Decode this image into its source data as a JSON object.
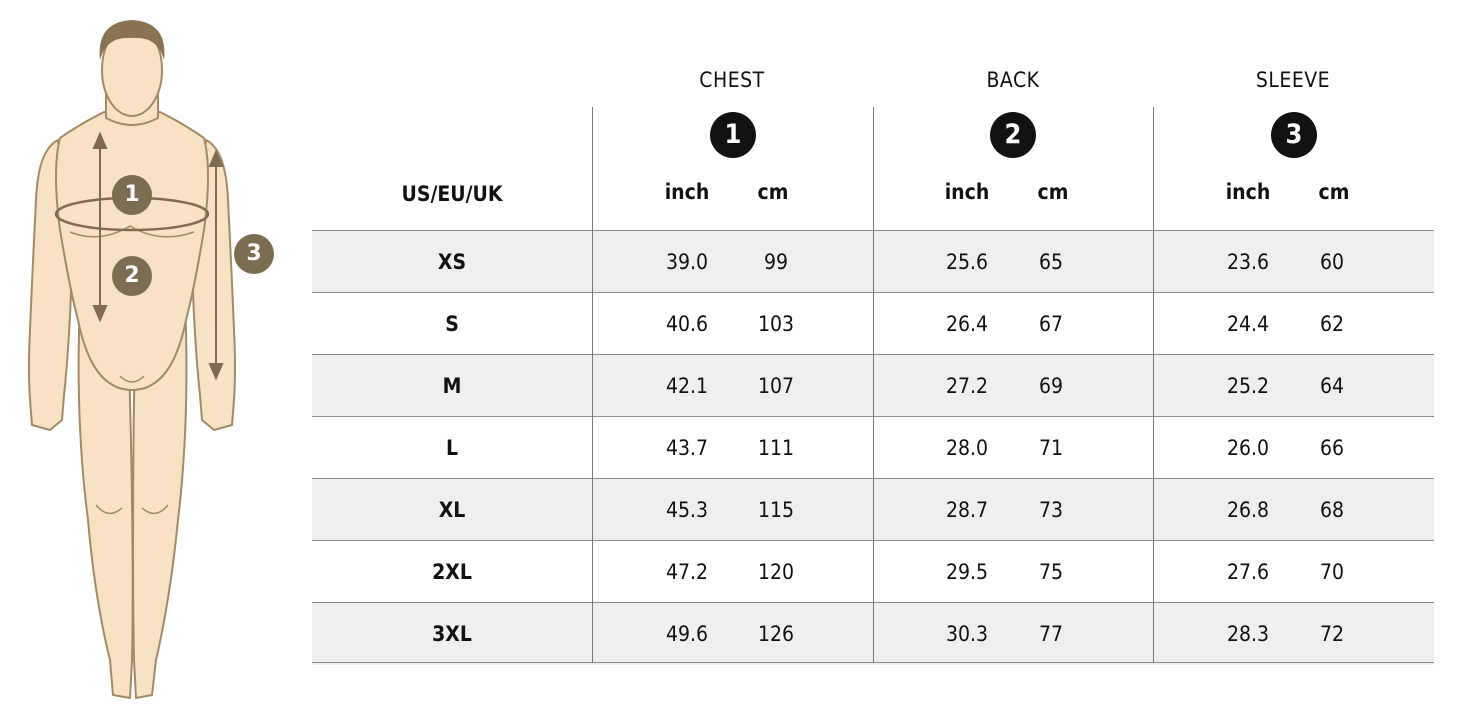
{
  "figure": {
    "markers": [
      "1",
      "2",
      "3"
    ],
    "colors": {
      "skin": "#f7e3c3",
      "outline": "#a38a66",
      "hair": "#8a7352",
      "marker_bg": "#7c6c50",
      "arrow": "#7f6b4d"
    }
  },
  "table": {
    "size_label": "US/EU/UK",
    "groups": [
      {
        "title": "CHEST",
        "badge": "1",
        "units": [
          "inch",
          "cm"
        ]
      },
      {
        "title": "BACK",
        "badge": "2",
        "units": [
          "inch",
          "cm"
        ]
      },
      {
        "title": "SLEEVE",
        "badge": "3",
        "units": [
          "inch",
          "cm"
        ]
      }
    ],
    "rows": [
      {
        "size": "XS",
        "chest_inch": "39.0",
        "chest_cm": "99",
        "back_inch": "25.6",
        "back_cm": "65",
        "sleeve_inch": "23.6",
        "sleeve_cm": "60"
      },
      {
        "size": "S",
        "chest_inch": "40.6",
        "chest_cm": "103",
        "back_inch": "26.4",
        "back_cm": "67",
        "sleeve_inch": "24.4",
        "sleeve_cm": "62"
      },
      {
        "size": "M",
        "chest_inch": "42.1",
        "chest_cm": "107",
        "back_inch": "27.2",
        "back_cm": "69",
        "sleeve_inch": "25.2",
        "sleeve_cm": "64"
      },
      {
        "size": "L",
        "chest_inch": "43.7",
        "chest_cm": "111",
        "back_inch": "28.0",
        "back_cm": "71",
        "sleeve_inch": "26.0",
        "sleeve_cm": "66"
      },
      {
        "size": "XL",
        "chest_inch": "45.3",
        "chest_cm": "115",
        "back_inch": "28.7",
        "back_cm": "73",
        "sleeve_inch": "26.8",
        "sleeve_cm": "68"
      },
      {
        "size": "2XL",
        "chest_inch": "47.2",
        "chest_cm": "120",
        "back_inch": "29.5",
        "back_cm": "75",
        "sleeve_inch": "27.6",
        "sleeve_cm": "70"
      },
      {
        "size": "3XL",
        "chest_inch": "49.6",
        "chest_cm": "126",
        "back_inch": "30.3",
        "back_cm": "77",
        "sleeve_inch": "28.3",
        "sleeve_cm": "72"
      }
    ]
  }
}
